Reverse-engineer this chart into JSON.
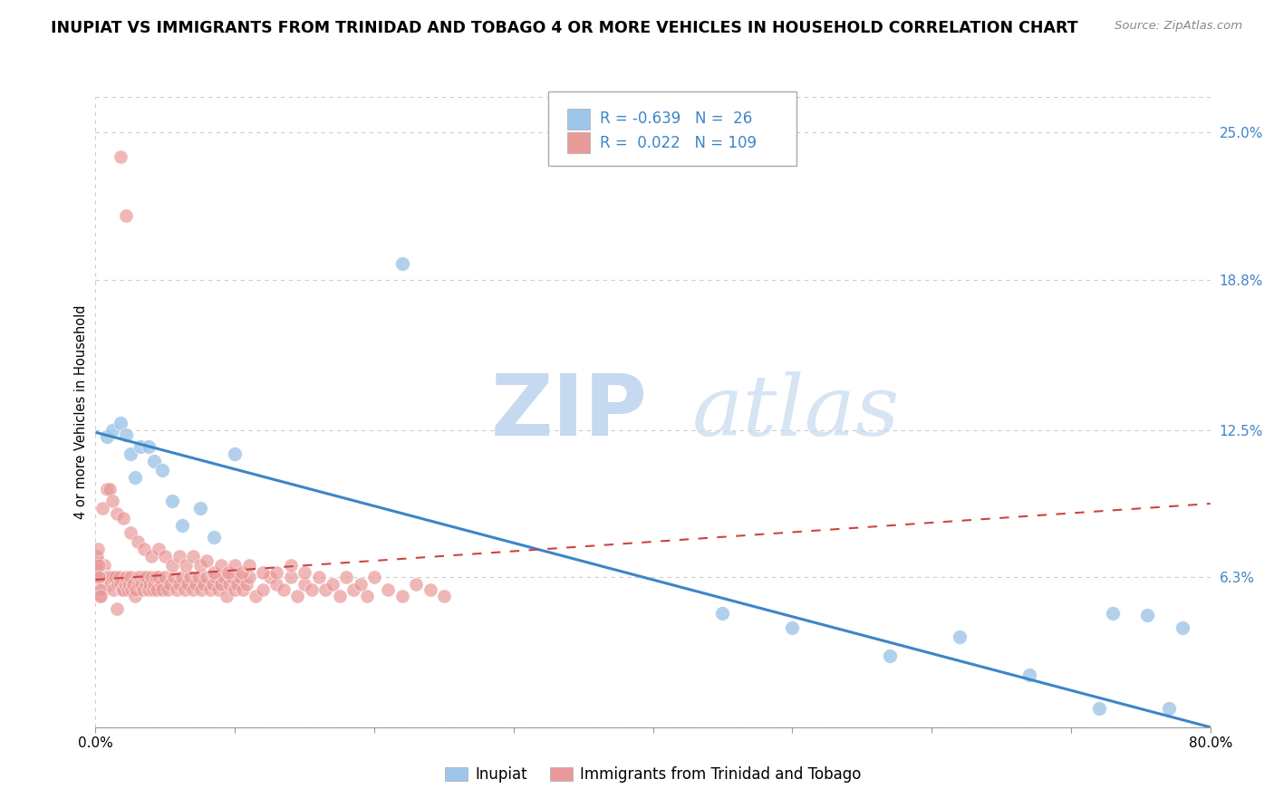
{
  "title": "INUPIAT VS IMMIGRANTS FROM TRINIDAD AND TOBAGO 4 OR MORE VEHICLES IN HOUSEHOLD CORRELATION CHART",
  "source": "Source: ZipAtlas.com",
  "ylabel": "4 or more Vehicles in Household",
  "xlim": [
    0.0,
    0.8
  ],
  "ylim": [
    0.0,
    0.265
  ],
  "xtick_positions": [
    0.0,
    0.1,
    0.2,
    0.3,
    0.4,
    0.5,
    0.6,
    0.7,
    0.8
  ],
  "xticklabels": [
    "0.0%",
    "",
    "",
    "",
    "",
    "",
    "",
    "",
    "80.0%"
  ],
  "ytick_positions": [
    0.0,
    0.063,
    0.125,
    0.188,
    0.25
  ],
  "ytick_labels": [
    "",
    "6.3%",
    "12.5%",
    "18.8%",
    "25.0%"
  ],
  "blue_R": -0.639,
  "blue_N": 26,
  "pink_R": 0.022,
  "pink_N": 109,
  "blue_dot_color": "#9fc5e8",
  "pink_dot_color": "#ea9999",
  "blue_line_color": "#3d85c8",
  "pink_line_color": "#cc4444",
  "blue_line_start_y": 0.124,
  "blue_line_end_y": 0.0,
  "pink_line_start_y": 0.062,
  "pink_line_end_y": 0.094,
  "title_fontsize": 12.5,
  "watermark_color": "#d0dff0",
  "inupiat_x": [
    0.008,
    0.012,
    0.018,
    0.022,
    0.025,
    0.028,
    0.032,
    0.038,
    0.042,
    0.048,
    0.055,
    0.062,
    0.075,
    0.085,
    0.1,
    0.22,
    0.45,
    0.5,
    0.57,
    0.62,
    0.67,
    0.72,
    0.73,
    0.755,
    0.77,
    0.78
  ],
  "inupiat_y": [
    0.122,
    0.125,
    0.128,
    0.123,
    0.115,
    0.105,
    0.118,
    0.118,
    0.112,
    0.108,
    0.095,
    0.085,
    0.092,
    0.08,
    0.115,
    0.195,
    0.048,
    0.042,
    0.03,
    0.038,
    0.022,
    0.008,
    0.048,
    0.047,
    0.008,
    0.042
  ],
  "tt_x": [
    0.0015,
    0.003,
    0.004,
    0.005,
    0.006,
    0.007,
    0.008,
    0.009,
    0.01,
    0.011,
    0.012,
    0.013,
    0.014,
    0.015,
    0.016,
    0.017,
    0.018,
    0.019,
    0.02,
    0.021,
    0.022,
    0.023,
    0.024,
    0.025,
    0.026,
    0.027,
    0.028,
    0.029,
    0.03,
    0.031,
    0.032,
    0.033,
    0.034,
    0.035,
    0.036,
    0.037,
    0.038,
    0.039,
    0.04,
    0.041,
    0.042,
    0.043,
    0.044,
    0.045,
    0.047,
    0.048,
    0.05,
    0.052,
    0.054,
    0.056,
    0.058,
    0.06,
    0.062,
    0.064,
    0.066,
    0.068,
    0.07,
    0.072,
    0.074,
    0.076,
    0.078,
    0.08,
    0.082,
    0.084,
    0.086,
    0.088,
    0.09,
    0.092,
    0.094,
    0.096,
    0.098,
    0.1,
    0.102,
    0.104,
    0.106,
    0.108,
    0.11,
    0.115,
    0.12,
    0.125,
    0.13,
    0.135,
    0.14,
    0.145,
    0.15,
    0.155,
    0.16,
    0.165,
    0.17,
    0.175,
    0.18,
    0.185,
    0.19,
    0.195,
    0.2,
    0.21,
    0.22,
    0.23,
    0.24,
    0.25,
    0.0005,
    0.0008,
    0.001,
    0.0012,
    0.0015,
    0.002,
    0.0025,
    0.003,
    0.0035
  ],
  "tt_y": [
    0.063,
    0.055,
    0.063,
    0.058,
    0.068,
    0.063,
    0.063,
    0.063,
    0.063,
    0.06,
    0.063,
    0.058,
    0.063,
    0.05,
    0.06,
    0.063,
    0.06,
    0.058,
    0.058,
    0.06,
    0.063,
    0.058,
    0.06,
    0.063,
    0.058,
    0.06,
    0.055,
    0.058,
    0.063,
    0.06,
    0.063,
    0.06,
    0.058,
    0.063,
    0.06,
    0.063,
    0.058,
    0.06,
    0.063,
    0.058,
    0.06,
    0.063,
    0.058,
    0.063,
    0.06,
    0.058,
    0.063,
    0.058,
    0.06,
    0.063,
    0.058,
    0.06,
    0.063,
    0.058,
    0.06,
    0.063,
    0.058,
    0.06,
    0.063,
    0.058,
    0.06,
    0.063,
    0.058,
    0.06,
    0.063,
    0.058,
    0.06,
    0.063,
    0.055,
    0.06,
    0.063,
    0.058,
    0.06,
    0.063,
    0.058,
    0.06,
    0.063,
    0.055,
    0.058,
    0.063,
    0.06,
    0.058,
    0.063,
    0.055,
    0.06,
    0.058,
    0.063,
    0.058,
    0.06,
    0.055,
    0.063,
    0.058,
    0.06,
    0.055,
    0.063,
    0.058,
    0.055,
    0.06,
    0.058,
    0.055,
    0.065,
    0.07,
    0.068,
    0.072,
    0.075,
    0.068,
    0.063,
    0.058,
    0.055
  ],
  "tt_outlier_x": [
    0.018,
    0.022,
    0.005,
    0.008,
    0.01,
    0.012,
    0.015,
    0.02,
    0.025,
    0.03,
    0.035,
    0.04,
    0.045,
    0.05,
    0.055,
    0.06,
    0.065,
    0.07,
    0.075,
    0.08,
    0.085,
    0.09,
    0.095,
    0.1,
    0.105,
    0.11,
    0.12,
    0.13,
    0.14,
    0.15
  ],
  "tt_outlier_y": [
    0.24,
    0.215,
    0.092,
    0.1,
    0.1,
    0.095,
    0.09,
    0.088,
    0.082,
    0.078,
    0.075,
    0.072,
    0.075,
    0.072,
    0.068,
    0.072,
    0.068,
    0.072,
    0.068,
    0.07,
    0.065,
    0.068,
    0.065,
    0.068,
    0.065,
    0.068,
    0.065,
    0.065,
    0.068,
    0.065
  ]
}
